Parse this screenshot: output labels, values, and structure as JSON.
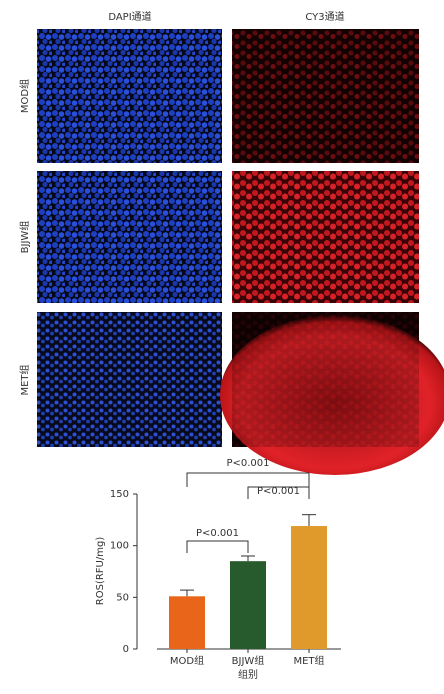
{
  "panels": {
    "columns": [
      "DAPI通道",
      "CY3通道"
    ],
    "rows": [
      "MOD组",
      "BJJW组",
      "MET组"
    ]
  },
  "chart_data": {
    "type": "bar",
    "categories": [
      "MOD组",
      "BJJW组",
      "MET组"
    ],
    "values": [
      51,
      85,
      119
    ],
    "errors": [
      6,
      5,
      11
    ],
    "colors": [
      "#e8651a",
      "#275a2c",
      "#e09a2c"
    ],
    "ylabel": "ROS(RFU/mg)",
    "xlabel": "组别",
    "ylim": [
      0,
      150
    ],
    "yticks": [
      0,
      50,
      100,
      150
    ],
    "annotations": [
      "P<0.001",
      "P<0.001",
      "P<0.001"
    ]
  }
}
